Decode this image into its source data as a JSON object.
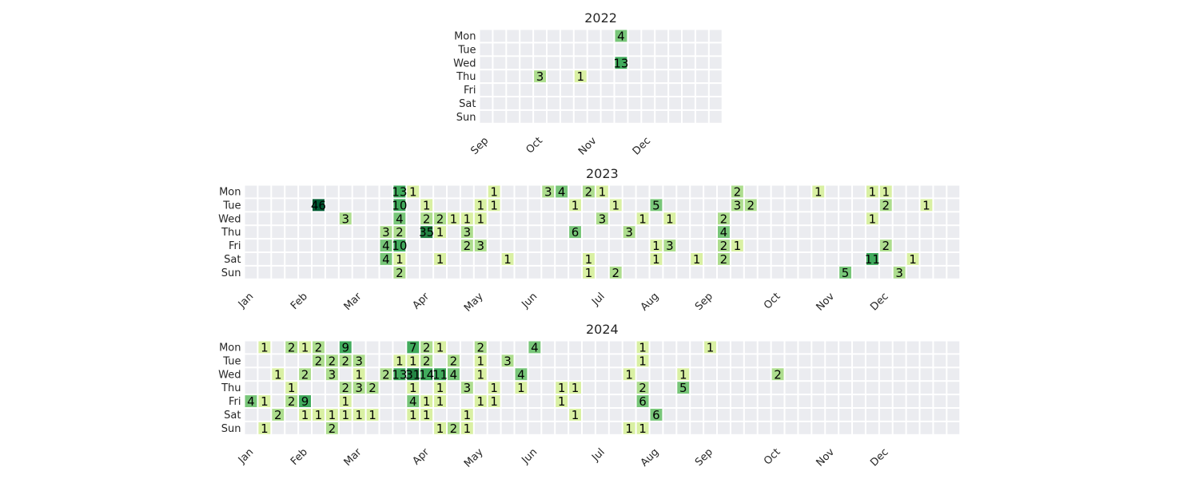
{
  "chart_data": [
    {
      "type": "heatmap",
      "title": "2022",
      "y_categories": [
        "Mon",
        "Tue",
        "Wed",
        "Thu",
        "Fri",
        "Sat",
        "Sun"
      ],
      "week_count": 18,
      "month_labels": [
        {
          "label": "Sep",
          "week": 0
        },
        {
          "label": "Oct",
          "week": 4
        },
        {
          "label": "Nov",
          "week": 8
        },
        {
          "label": "Dec",
          "week": 12
        }
      ],
      "cells": [
        {
          "week": 10,
          "day": 0,
          "value": 4
        },
        {
          "week": 10,
          "day": 2,
          "value": 13
        },
        {
          "week": 4,
          "day": 3,
          "value": 3
        },
        {
          "week": 7,
          "day": 3,
          "value": 1
        }
      ]
    },
    {
      "type": "heatmap",
      "title": "2023",
      "y_categories": [
        "Mon",
        "Tue",
        "Wed",
        "Thu",
        "Fri",
        "Sat",
        "Sun"
      ],
      "week_count": 53,
      "month_labels": [
        {
          "label": "Jan",
          "week": 0
        },
        {
          "label": "Feb",
          "week": 4
        },
        {
          "label": "Mar",
          "week": 8
        },
        {
          "label": "Apr",
          "week": 13
        },
        {
          "label": "May",
          "week": 17
        },
        {
          "label": "Jun",
          "week": 21
        },
        {
          "label": "Jul",
          "week": 26
        },
        {
          "label": "Aug",
          "week": 30
        },
        {
          "label": "Sep",
          "week": 34
        },
        {
          "label": "Oct",
          "week": 39
        },
        {
          "label": "Nov",
          "week": 43
        },
        {
          "label": "Dec",
          "week": 47
        }
      ],
      "cells": [
        {
          "week": 11,
          "day": 0,
          "value": 13
        },
        {
          "week": 12,
          "day": 0,
          "value": 1
        },
        {
          "week": 18,
          "day": 0,
          "value": 1
        },
        {
          "week": 22,
          "day": 0,
          "value": 3
        },
        {
          "week": 23,
          "day": 0,
          "value": 4
        },
        {
          "week": 25,
          "day": 0,
          "value": 2
        },
        {
          "week": 26,
          "day": 0,
          "value": 1
        },
        {
          "week": 36,
          "day": 0,
          "value": 2
        },
        {
          "week": 42,
          "day": 0,
          "value": 1
        },
        {
          "week": 46,
          "day": 0,
          "value": 1
        },
        {
          "week": 47,
          "day": 0,
          "value": 1
        },
        {
          "week": 5,
          "day": 1,
          "value": 46
        },
        {
          "week": 11,
          "day": 1,
          "value": 10
        },
        {
          "week": 13,
          "day": 1,
          "value": 1
        },
        {
          "week": 17,
          "day": 1,
          "value": 1
        },
        {
          "week": 18,
          "day": 1,
          "value": 1
        },
        {
          "week": 24,
          "day": 1,
          "value": 1
        },
        {
          "week": 27,
          "day": 1,
          "value": 1
        },
        {
          "week": 30,
          "day": 1,
          "value": 5
        },
        {
          "week": 36,
          "day": 1,
          "value": 3
        },
        {
          "week": 37,
          "day": 1,
          "value": 2
        },
        {
          "week": 47,
          "day": 1,
          "value": 2
        },
        {
          "week": 50,
          "day": 1,
          "value": 1
        },
        {
          "week": 7,
          "day": 2,
          "value": 3
        },
        {
          "week": 11,
          "day": 2,
          "value": 4
        },
        {
          "week": 13,
          "day": 2,
          "value": 2
        },
        {
          "week": 14,
          "day": 2,
          "value": 2
        },
        {
          "week": 15,
          "day": 2,
          "value": 1
        },
        {
          "week": 16,
          "day": 2,
          "value": 1
        },
        {
          "week": 17,
          "day": 2,
          "value": 1
        },
        {
          "week": 26,
          "day": 2,
          "value": 3
        },
        {
          "week": 29,
          "day": 2,
          "value": 1
        },
        {
          "week": 31,
          "day": 2,
          "value": 1
        },
        {
          "week": 35,
          "day": 2,
          "value": 2
        },
        {
          "week": 46,
          "day": 2,
          "value": 1
        },
        {
          "week": 10,
          "day": 3,
          "value": 3
        },
        {
          "week": 11,
          "day": 3,
          "value": 2
        },
        {
          "week": 13,
          "day": 3,
          "value": 35
        },
        {
          "week": 14,
          "day": 3,
          "value": 1
        },
        {
          "week": 16,
          "day": 3,
          "value": 3
        },
        {
          "week": 24,
          "day": 3,
          "value": 6
        },
        {
          "week": 28,
          "day": 3,
          "value": 3
        },
        {
          "week": 35,
          "day": 3,
          "value": 4
        },
        {
          "week": 10,
          "day": 4,
          "value": 4
        },
        {
          "week": 11,
          "day": 4,
          "value": 10
        },
        {
          "week": 16,
          "day": 4,
          "value": 2
        },
        {
          "week": 17,
          "day": 4,
          "value": 3
        },
        {
          "week": 30,
          "day": 4,
          "value": 1
        },
        {
          "week": 31,
          "day": 4,
          "value": 3
        },
        {
          "week": 35,
          "day": 4,
          "value": 2
        },
        {
          "week": 36,
          "day": 4,
          "value": 1
        },
        {
          "week": 47,
          "day": 4,
          "value": 2
        },
        {
          "week": 10,
          "day": 5,
          "value": 4
        },
        {
          "week": 11,
          "day": 5,
          "value": 1
        },
        {
          "week": 14,
          "day": 5,
          "value": 1
        },
        {
          "week": 19,
          "day": 5,
          "value": 1
        },
        {
          "week": 25,
          "day": 5,
          "value": 1
        },
        {
          "week": 30,
          "day": 5,
          "value": 1
        },
        {
          "week": 33,
          "day": 5,
          "value": 1
        },
        {
          "week": 35,
          "day": 5,
          "value": 2
        },
        {
          "week": 46,
          "day": 5,
          "value": 11
        },
        {
          "week": 49,
          "day": 5,
          "value": 1
        },
        {
          "week": 11,
          "day": 6,
          "value": 2
        },
        {
          "week": 25,
          "day": 6,
          "value": 1
        },
        {
          "week": 27,
          "day": 6,
          "value": 2
        },
        {
          "week": 44,
          "day": 6,
          "value": 5
        },
        {
          "week": 48,
          "day": 6,
          "value": 3
        }
      ]
    },
    {
      "type": "heatmap",
      "title": "2024",
      "y_categories": [
        "Mon",
        "Tue",
        "Wed",
        "Thu",
        "Fri",
        "Sat",
        "Sun"
      ],
      "week_count": 53,
      "month_labels": [
        {
          "label": "Jan",
          "week": 0
        },
        {
          "label": "Feb",
          "week": 4
        },
        {
          "label": "Mar",
          "week": 8
        },
        {
          "label": "Apr",
          "week": 13
        },
        {
          "label": "May",
          "week": 17
        },
        {
          "label": "Jun",
          "week": 21
        },
        {
          "label": "Jul",
          "week": 26
        },
        {
          "label": "Aug",
          "week": 30
        },
        {
          "label": "Sep",
          "week": 34
        },
        {
          "label": "Oct",
          "week": 39
        },
        {
          "label": "Nov",
          "week": 43
        },
        {
          "label": "Dec",
          "week": 47
        }
      ],
      "cells": [
        {
          "week": 1,
          "day": 0,
          "value": 1
        },
        {
          "week": 3,
          "day": 0,
          "value": 2
        },
        {
          "week": 4,
          "day": 0,
          "value": 1
        },
        {
          "week": 5,
          "day": 0,
          "value": 2
        },
        {
          "week": 7,
          "day": 0,
          "value": 9
        },
        {
          "week": 12,
          "day": 0,
          "value": 7
        },
        {
          "week": 13,
          "day": 0,
          "value": 2
        },
        {
          "week": 14,
          "day": 0,
          "value": 1
        },
        {
          "week": 17,
          "day": 0,
          "value": 2
        },
        {
          "week": 21,
          "day": 0,
          "value": 4
        },
        {
          "week": 29,
          "day": 0,
          "value": 1
        },
        {
          "week": 34,
          "day": 0,
          "value": 1
        },
        {
          "week": 5,
          "day": 1,
          "value": 2
        },
        {
          "week": 6,
          "day": 1,
          "value": 2
        },
        {
          "week": 7,
          "day": 1,
          "value": 2
        },
        {
          "week": 8,
          "day": 1,
          "value": 3
        },
        {
          "week": 11,
          "day": 1,
          "value": 1
        },
        {
          "week": 12,
          "day": 1,
          "value": 1
        },
        {
          "week": 13,
          "day": 1,
          "value": 2
        },
        {
          "week": 15,
          "day": 1,
          "value": 2
        },
        {
          "week": 17,
          "day": 1,
          "value": 1
        },
        {
          "week": 19,
          "day": 1,
          "value": 3
        },
        {
          "week": 29,
          "day": 1,
          "value": 1
        },
        {
          "week": 2,
          "day": 2,
          "value": 1
        },
        {
          "week": 4,
          "day": 2,
          "value": 2
        },
        {
          "week": 6,
          "day": 2,
          "value": 3
        },
        {
          "week": 8,
          "day": 2,
          "value": 1
        },
        {
          "week": 10,
          "day": 2,
          "value": 2
        },
        {
          "week": 11,
          "day": 2,
          "value": 13
        },
        {
          "week": 12,
          "day": 2,
          "value": 31
        },
        {
          "week": 13,
          "day": 2,
          "value": 14
        },
        {
          "week": 14,
          "day": 2,
          "value": 11
        },
        {
          "week": 15,
          "day": 2,
          "value": 4
        },
        {
          "week": 17,
          "day": 2,
          "value": 1
        },
        {
          "week": 20,
          "day": 2,
          "value": 4
        },
        {
          "week": 28,
          "day": 2,
          "value": 1
        },
        {
          "week": 32,
          "day": 2,
          "value": 1
        },
        {
          "week": 39,
          "day": 2,
          "value": 2
        },
        {
          "week": 3,
          "day": 3,
          "value": 1
        },
        {
          "week": 7,
          "day": 3,
          "value": 2
        },
        {
          "week": 8,
          "day": 3,
          "value": 3
        },
        {
          "week": 9,
          "day": 3,
          "value": 2
        },
        {
          "week": 12,
          "day": 3,
          "value": 1
        },
        {
          "week": 14,
          "day": 3,
          "value": 1
        },
        {
          "week": 16,
          "day": 3,
          "value": 3
        },
        {
          "week": 18,
          "day": 3,
          "value": 1
        },
        {
          "week": 20,
          "day": 3,
          "value": 1
        },
        {
          "week": 23,
          "day": 3,
          "value": 1
        },
        {
          "week": 24,
          "day": 3,
          "value": 1
        },
        {
          "week": 29,
          "day": 3,
          "value": 2
        },
        {
          "week": 32,
          "day": 3,
          "value": 5
        },
        {
          "week": 0,
          "day": 4,
          "value": 4
        },
        {
          "week": 1,
          "day": 4,
          "value": 1
        },
        {
          "week": 3,
          "day": 4,
          "value": 2
        },
        {
          "week": 4,
          "day": 4,
          "value": 9
        },
        {
          "week": 7,
          "day": 4,
          "value": 1
        },
        {
          "week": 12,
          "day": 4,
          "value": 4
        },
        {
          "week": 13,
          "day": 4,
          "value": 1
        },
        {
          "week": 14,
          "day": 4,
          "value": 1
        },
        {
          "week": 17,
          "day": 4,
          "value": 1
        },
        {
          "week": 18,
          "day": 4,
          "value": 1
        },
        {
          "week": 23,
          "day": 4,
          "value": 1
        },
        {
          "week": 29,
          "day": 4,
          "value": 6
        },
        {
          "week": 2,
          "day": 5,
          "value": 2
        },
        {
          "week": 4,
          "day": 5,
          "value": 1
        },
        {
          "week": 5,
          "day": 5,
          "value": 1
        },
        {
          "week": 6,
          "day": 5,
          "value": 1
        },
        {
          "week": 7,
          "day": 5,
          "value": 1
        },
        {
          "week": 8,
          "day": 5,
          "value": 1
        },
        {
          "week": 9,
          "day": 5,
          "value": 1
        },
        {
          "week": 12,
          "day": 5,
          "value": 1
        },
        {
          "week": 13,
          "day": 5,
          "value": 1
        },
        {
          "week": 16,
          "day": 5,
          "value": 1
        },
        {
          "week": 24,
          "day": 5,
          "value": 1
        },
        {
          "week": 30,
          "day": 5,
          "value": 6
        },
        {
          "week": 1,
          "day": 6,
          "value": 1
        },
        {
          "week": 6,
          "day": 6,
          "value": 2
        },
        {
          "week": 14,
          "day": 6,
          "value": 1
        },
        {
          "week": 15,
          "day": 6,
          "value": 2
        },
        {
          "week": 16,
          "day": 6,
          "value": 1
        },
        {
          "week": 28,
          "day": 6,
          "value": 1
        },
        {
          "week": 29,
          "day": 6,
          "value": 1
        }
      ]
    }
  ],
  "colors": {
    "empty": "#ebecf0",
    "scale": [
      "#d9f0a3",
      "#addd8e",
      "#78c679",
      "#41ab5d",
      "#238443",
      "#005a32"
    ],
    "text": "#000000"
  }
}
